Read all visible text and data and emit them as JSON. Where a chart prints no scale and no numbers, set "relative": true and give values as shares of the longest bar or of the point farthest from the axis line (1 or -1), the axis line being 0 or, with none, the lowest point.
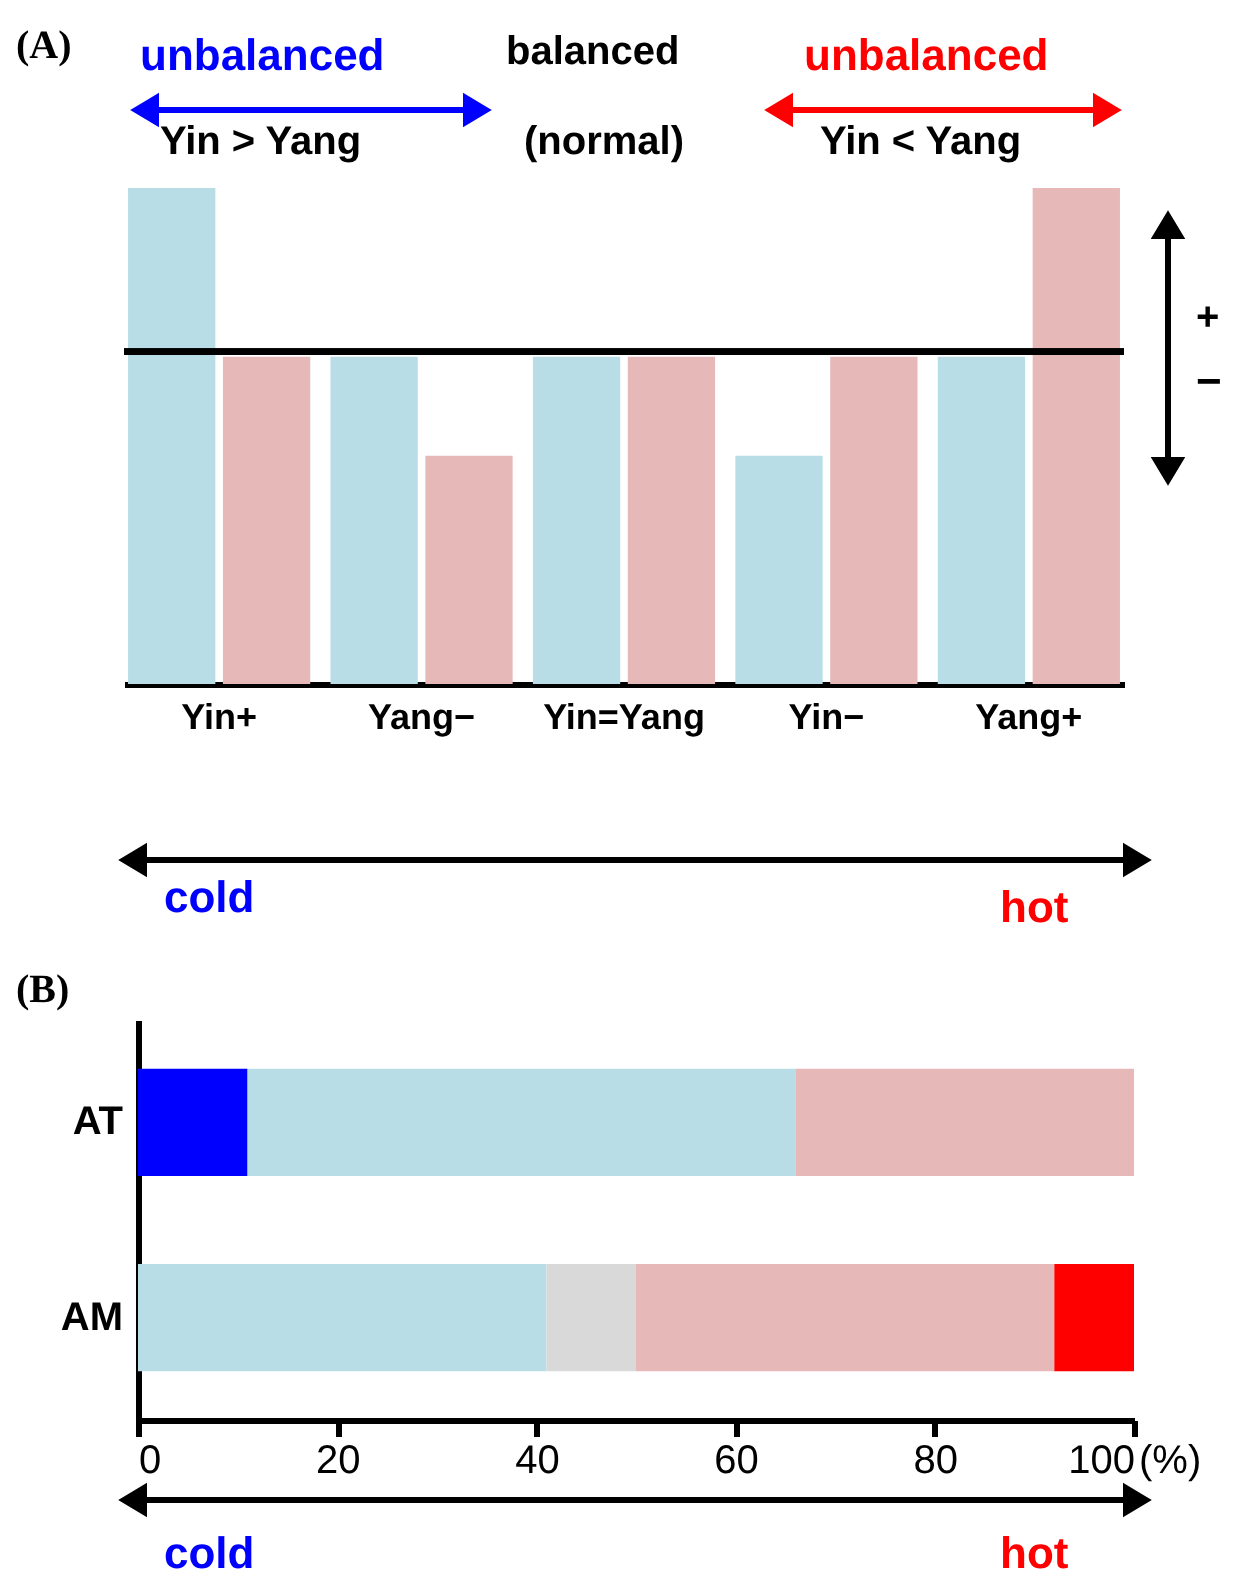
{
  "chart_data": [
    {
      "type": "bar",
      "relative": true,
      "categories": [
        "Yin+",
        "Yang−",
        "Yin=Yang",
        "Yin−",
        "Yang+"
      ],
      "series": [
        {
          "color": "#b8dde6",
          "values": [
            1,
            0.66,
            0.66,
            0.46,
            0.66
          ]
        },
        {
          "color": "#e6b8b7",
          "values": [
            0.66,
            0.46,
            0.66,
            0.66,
            1
          ]
        }
      ],
      "ref_lines": [
        {
          "axis": "y",
          "value": 0.67,
          "color": "#000000"
        }
      ],
      "tick_labels": "x",
      "grid": false,
      "annotations": [
        "(A)",
        "unbalanced",
        "balanced",
        "unbalanced",
        "Yin > Yang",
        "(normal)",
        "Yin < Yang",
        "+",
        "−",
        "cold",
        "hot"
      ]
    },
    {
      "type": "bar",
      "orientation": "horizontal",
      "stacked": true,
      "categories": [
        "AT",
        "AM"
      ],
      "series": [
        {
          "color": "#0000ff",
          "values": [
            11,
            null
          ]
        },
        {
          "color": "#b8dde6",
          "values": [
            55,
            41
          ]
        },
        {
          "color": "#d9d9d9",
          "values": [
            null,
            9
          ]
        },
        {
          "color": "#e6b8b7",
          "values": [
            34,
            42
          ]
        },
        {
          "color": "#ff0000",
          "values": [
            null,
            8
          ]
        }
      ],
      "xlim": [
        0,
        100
      ],
      "xticks": [
        0,
        20,
        40,
        60,
        80,
        100
      ],
      "xlabel": "(%)",
      "grid": false,
      "annotations": [
        "(B)",
        "cold",
        "hot"
      ]
    }
  ]
}
